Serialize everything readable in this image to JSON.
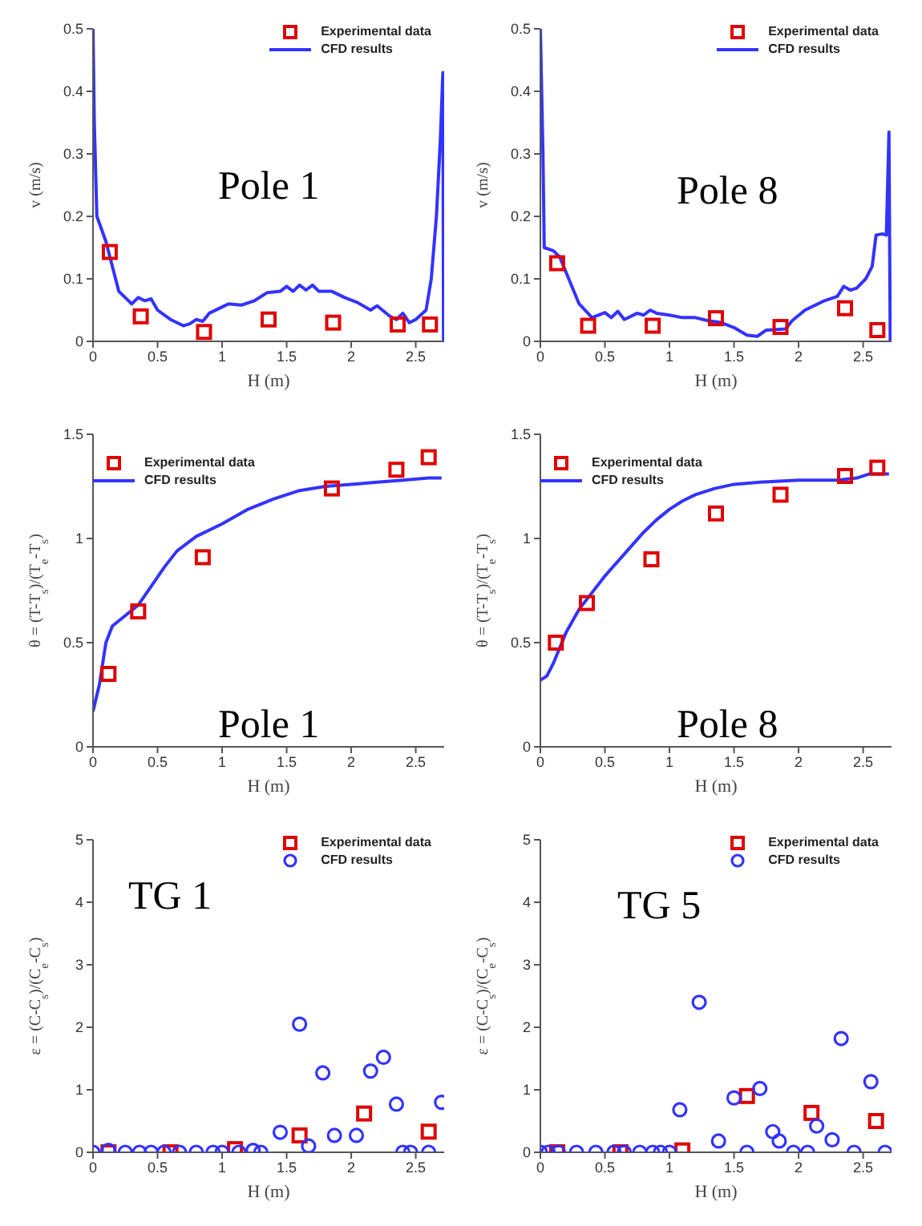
{
  "chart_data": [
    {
      "type": "line",
      "xlabel": "H (m)",
      "ylabel": "v (m/s)",
      "xlim": [
        0,
        2.72
      ],
      "ylim": [
        0,
        0.5
      ],
      "xticks": [
        0,
        0.5,
        1,
        1.5,
        2,
        2.5
      ],
      "yticks": [
        0,
        0.1,
        0.2,
        0.3,
        0.4,
        0.5
      ],
      "legend": "top right",
      "annotations": [
        "Pole 1"
      ],
      "series": [
        {
          "name": "Experimental data",
          "type": "scatter",
          "marker": "square",
          "color": "#e00000",
          "x": [
            0.13,
            0.37,
            0.86,
            1.36,
            1.86,
            2.36,
            2.61
          ],
          "values": [
            0.143,
            0.04,
            0.015,
            0.035,
            0.03,
            0.027,
            0.027
          ]
        },
        {
          "name": "CFD results",
          "marker": "none",
          "line_style": "solid",
          "color": "#3333ff",
          "x": [
            0,
            0.01,
            0.03,
            0.1,
            0.15,
            0.2,
            0.25,
            0.3,
            0.35,
            0.4,
            0.45,
            0.5,
            0.6,
            0.7,
            0.75,
            0.8,
            0.85,
            0.9,
            1.0,
            1.05,
            1.15,
            1.25,
            1.35,
            1.45,
            1.5,
            1.55,
            1.6,
            1.65,
            1.7,
            1.75,
            1.85,
            1.95,
            2.05,
            2.15,
            2.2,
            2.3,
            2.35,
            2.4,
            2.45,
            2.5,
            2.58,
            2.62,
            2.66,
            2.69,
            2.71,
            2.715
          ],
          "values": [
            0.5,
            0.35,
            0.2,
            0.16,
            0.12,
            0.08,
            0.07,
            0.06,
            0.07,
            0.065,
            0.068,
            0.05,
            0.035,
            0.025,
            0.028,
            0.035,
            0.032,
            0.045,
            0.055,
            0.06,
            0.058,
            0.065,
            0.078,
            0.08,
            0.088,
            0.08,
            0.09,
            0.082,
            0.09,
            0.08,
            0.08,
            0.07,
            0.062,
            0.05,
            0.057,
            0.04,
            0.035,
            0.045,
            0.03,
            0.035,
            0.05,
            0.1,
            0.2,
            0.32,
            0.43,
            0
          ]
        }
      ]
    },
    {
      "type": "line",
      "xlabel": "H (m)",
      "ylabel": "v (m/s)",
      "xlim": [
        0,
        2.72
      ],
      "ylim": [
        0,
        0.5
      ],
      "xticks": [
        0,
        0.5,
        1,
        1.5,
        2,
        2.5
      ],
      "yticks": [
        0,
        0.1,
        0.2,
        0.3,
        0.4,
        0.5
      ],
      "legend": "top right",
      "annotations": [
        "Pole 8"
      ],
      "series": [
        {
          "name": "Experimental data",
          "type": "scatter",
          "marker": "square",
          "color": "#e00000",
          "x": [
            0.13,
            0.37,
            0.87,
            1.36,
            1.86,
            2.36,
            2.61
          ],
          "values": [
            0.125,
            0.025,
            0.025,
            0.037,
            0.023,
            0.053,
            0.018
          ]
        },
        {
          "name": "CFD results",
          "marker": "none",
          "line_style": "solid",
          "color": "#3333ff",
          "x": [
            0,
            0.02,
            0.03,
            0.1,
            0.15,
            0.2,
            0.3,
            0.4,
            0.5,
            0.55,
            0.6,
            0.65,
            0.75,
            0.8,
            0.85,
            0.9,
            1.0,
            1.1,
            1.2,
            1.3,
            1.4,
            1.5,
            1.6,
            1.68,
            1.75,
            1.9,
            1.95,
            2.05,
            2.2,
            2.3,
            2.35,
            2.4,
            2.45,
            2.52,
            2.57,
            2.6,
            2.65,
            2.68,
            2.7,
            2.71
          ],
          "values": [
            0.5,
            0.3,
            0.15,
            0.145,
            0.135,
            0.11,
            0.06,
            0.038,
            0.046,
            0.038,
            0.048,
            0.035,
            0.045,
            0.042,
            0.05,
            0.045,
            0.042,
            0.038,
            0.038,
            0.033,
            0.03,
            0.022,
            0.01,
            0.008,
            0.018,
            0.02,
            0.033,
            0.05,
            0.065,
            0.072,
            0.088,
            0.082,
            0.085,
            0.1,
            0.12,
            0.17,
            0.172,
            0.17,
            0.335,
            0
          ]
        }
      ]
    },
    {
      "type": "line",
      "xlabel": "H (m)",
      "ylabel": "θ = (T-T$_{s}$)/(T$_{e}$-T$_{s}$)",
      "xlim": [
        0,
        2.72
      ],
      "ylim": [
        0,
        1.5
      ],
      "xticks": [
        0,
        0.5,
        1,
        1.5,
        2,
        2.5
      ],
      "yticks": [
        0,
        0.5,
        1,
        1.5
      ],
      "legend": "top left",
      "annotations": [
        "Pole 1"
      ],
      "series": [
        {
          "name": "Experimental data",
          "type": "scatter",
          "marker": "square",
          "color": "#e00000",
          "x": [
            0.12,
            0.35,
            0.85,
            1.85,
            2.35,
            2.6
          ],
          "values": [
            0.35,
            0.65,
            0.91,
            1.24,
            1.33,
            1.39
          ]
        },
        {
          "name": "CFD results",
          "marker": "none",
          "line_style": "solid",
          "color": "#3333ff",
          "x": [
            0,
            0.05,
            0.1,
            0.15,
            0.25,
            0.35,
            0.45,
            0.55,
            0.65,
            0.8,
            1.0,
            1.2,
            1.4,
            1.6,
            1.8,
            2.0,
            2.2,
            2.4,
            2.6,
            2.7
          ],
          "values": [
            0.17,
            0.3,
            0.5,
            0.58,
            0.63,
            0.68,
            0.77,
            0.86,
            0.94,
            1.01,
            1.07,
            1.14,
            1.19,
            1.23,
            1.25,
            1.26,
            1.27,
            1.28,
            1.29,
            1.29
          ]
        }
      ]
    },
    {
      "type": "line",
      "xlabel": "H (m)",
      "ylabel": "θ = (T-T$_{s}$)/(T$_{e}$-T$_{s}$)",
      "xlim": [
        0,
        2.72
      ],
      "ylim": [
        0,
        1.5
      ],
      "xticks": [
        0,
        0.5,
        1,
        1.5,
        2,
        2.5
      ],
      "yticks": [
        0,
        0.5,
        1,
        1.5
      ],
      "legend": "top left",
      "annotations": [
        "Pole 8"
      ],
      "series": [
        {
          "name": "Experimental data",
          "type": "scatter",
          "marker": "square",
          "color": "#e00000",
          "x": [
            0.12,
            0.36,
            0.86,
            1.36,
            1.86,
            2.36,
            2.61
          ],
          "values": [
            0.5,
            0.69,
            0.9,
            1.12,
            1.21,
            1.3,
            1.34
          ]
        },
        {
          "name": "CFD results",
          "marker": "none",
          "line_style": "solid",
          "color": "#3333ff",
          "x": [
            0,
            0.05,
            0.1,
            0.2,
            0.3,
            0.4,
            0.5,
            0.6,
            0.7,
            0.8,
            0.9,
            1.0,
            1.1,
            1.2,
            1.35,
            1.5,
            1.7,
            2.0,
            2.3,
            2.45,
            2.55,
            2.7
          ],
          "values": [
            0.32,
            0.34,
            0.4,
            0.55,
            0.66,
            0.74,
            0.82,
            0.89,
            0.96,
            1.03,
            1.09,
            1.14,
            1.18,
            1.21,
            1.24,
            1.26,
            1.27,
            1.28,
            1.28,
            1.29,
            1.31,
            1.31
          ]
        }
      ]
    },
    {
      "type": "scatter",
      "xlabel": "H (m)",
      "ylabel": "ε = (C-C$_{s}$)/(C$_{e}$-C$_{s}$)",
      "xlim": [
        0,
        2.72
      ],
      "ylim": [
        0,
        5
      ],
      "xticks": [
        0,
        0.5,
        1,
        1.5,
        2,
        2.5
      ],
      "yticks": [
        0,
        1,
        2,
        3,
        4,
        5
      ],
      "legend": "top right",
      "annotations": [
        "TG 1"
      ],
      "series": [
        {
          "name": "Experimental data",
          "marker": "square",
          "color": "#e00000",
          "x": [
            0.12,
            0.6,
            1.1,
            1.6,
            2.1,
            2.6
          ],
          "values": [
            0,
            0,
            0.05,
            0.27,
            0.62,
            0.33
          ]
        },
        {
          "name": "CFD results",
          "marker": "circle",
          "color": "#3333ff",
          "x": [
            0,
            0.12,
            0.25,
            0.36,
            0.45,
            0.55,
            0.67,
            0.8,
            0.93,
            1.0,
            1.13,
            1.24,
            1.3,
            1.45,
            1.6,
            1.67,
            1.78,
            1.87,
            2.04,
            2.15,
            2.25,
            2.35,
            2.4,
            2.46,
            2.6,
            2.7
          ],
          "values": [
            0,
            0.03,
            0,
            0,
            0,
            0,
            0,
            0,
            0,
            0,
            0,
            0.03,
            0,
            0.32,
            2.05,
            0.1,
            1.27,
            0.27,
            0.27,
            1.3,
            1.52,
            0.77,
            0,
            0,
            0,
            0.8
          ]
        }
      ]
    },
    {
      "type": "scatter",
      "xlabel": "H (m)",
      "ylabel": "ε = (C-C$_{s}$)/(C$_{e}$-C$_{s}$)",
      "xlim": [
        0,
        2.72
      ],
      "ylim": [
        0,
        5
      ],
      "xticks": [
        0,
        0.5,
        1,
        1.5,
        2,
        2.5
      ],
      "yticks": [
        0,
        1,
        2,
        3,
        4,
        5
      ],
      "legend": "top right",
      "annotations": [
        "TG 5"
      ],
      "series": [
        {
          "name": "Experimental data",
          "marker": "square",
          "color": "#e00000",
          "x": [
            0.13,
            0.62,
            1.1,
            1.6,
            2.1,
            2.6
          ],
          "values": [
            0,
            0,
            0.03,
            0.9,
            0.63,
            0.5
          ]
        },
        {
          "name": "CFD results",
          "marker": "circle",
          "color": "#3333ff",
          "x": [
            0,
            0.06,
            0.14,
            0.28,
            0.43,
            0.57,
            0.65,
            0.77,
            0.87,
            0.93,
            1.0,
            1.08,
            1.23,
            1.38,
            1.5,
            1.6,
            1.7,
            1.8,
            1.85,
            1.96,
            2.07,
            2.14,
            2.26,
            2.33,
            2.43,
            2.56,
            2.67
          ],
          "values": [
            0,
            0,
            0,
            0,
            0,
            0,
            0,
            0,
            0,
            0,
            0,
            0.68,
            2.4,
            0.18,
            0.87,
            0,
            1.02,
            0.33,
            0.18,
            0,
            0,
            0.42,
            0.2,
            1.82,
            0,
            1.13,
            0
          ]
        }
      ]
    }
  ]
}
